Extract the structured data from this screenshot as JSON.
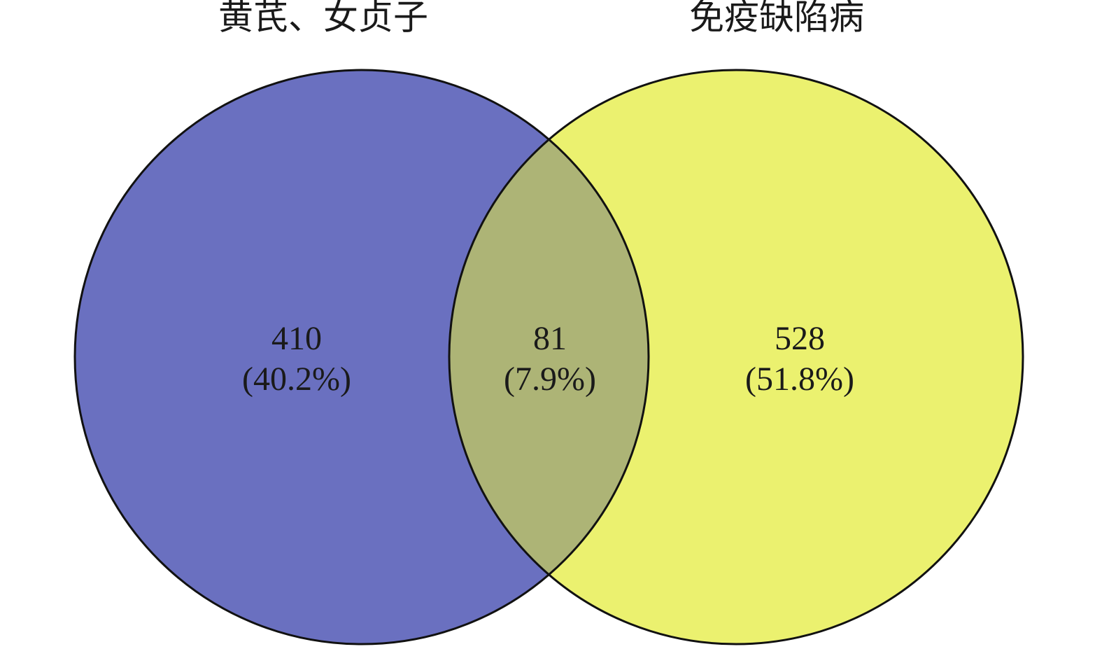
{
  "chart_data": {
    "type": "venn",
    "sets": [
      {
        "name": "黄芪、女贞子",
        "color": "#6a70c0"
      },
      {
        "name": "免疫缺陷病",
        "color": "#ebf16f"
      }
    ],
    "overlap_color": "#adb476",
    "regions": [
      "left",
      "both",
      "right"
    ],
    "values": [
      410,
      81,
      528
    ],
    "percent_labels": [
      "(40.2%)",
      "(7.9%)",
      "(51.8%)"
    ]
  }
}
